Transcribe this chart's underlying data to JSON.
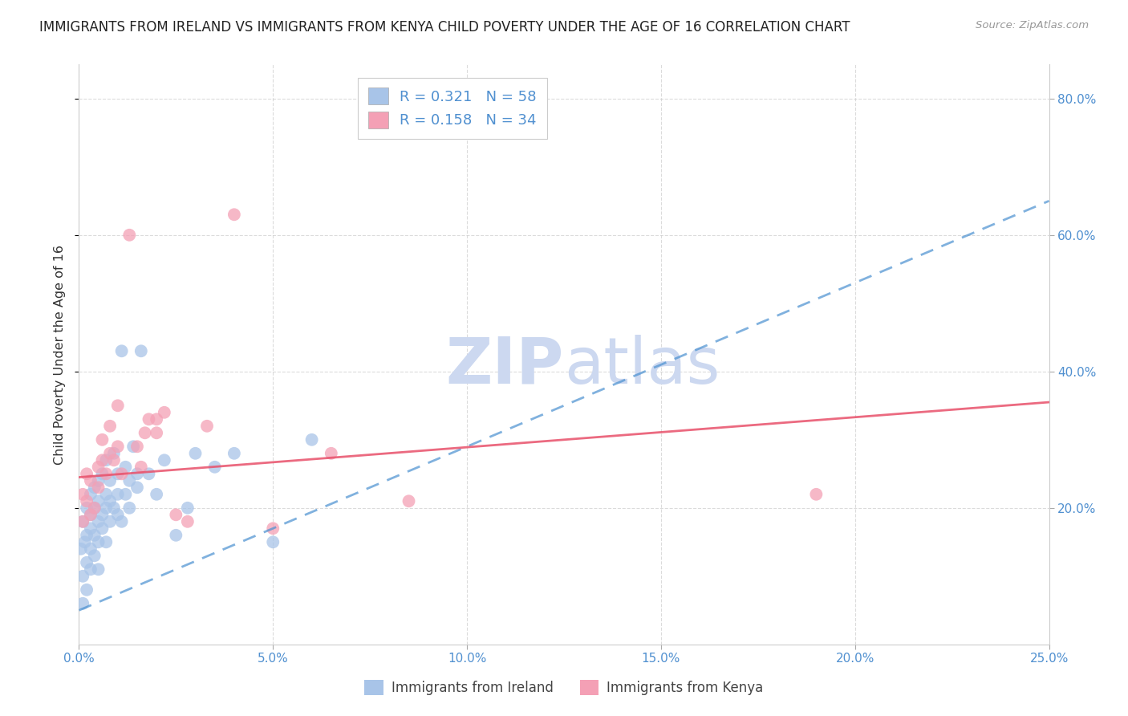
{
  "title": "IMMIGRANTS FROM IRELAND VS IMMIGRANTS FROM KENYA CHILD POVERTY UNDER THE AGE OF 16 CORRELATION CHART",
  "source": "Source: ZipAtlas.com",
  "ylabel": "Child Poverty Under the Age of 16",
  "legend_ireland": "Immigrants from Ireland",
  "legend_kenya": "Immigrants from Kenya",
  "ireland_R": "0.321",
  "ireland_N": "58",
  "kenya_R": "0.158",
  "kenya_N": "34",
  "xlim": [
    0.0,
    0.25
  ],
  "ylim": [
    0.0,
    0.85
  ],
  "xtick_labels": [
    "0.0%",
    "5.0%",
    "10.0%",
    "15.0%",
    "20.0%",
    "25.0%"
  ],
  "xtick_vals": [
    0.0,
    0.05,
    0.1,
    0.15,
    0.2,
    0.25
  ],
  "ytick_labels": [
    "20.0%",
    "40.0%",
    "60.0%",
    "80.0%"
  ],
  "ytick_vals": [
    0.2,
    0.4,
    0.6,
    0.8
  ],
  "ireland_color": "#a8c4e8",
  "kenya_color": "#f4a0b5",
  "ireland_line_color": "#4a90d0",
  "kenya_line_color": "#e8506a",
  "background_color": "#ffffff",
  "grid_color": "#cccccc",
  "watermark_color": "#ccd8f0",
  "ireland_line_x0": 0.0,
  "ireland_line_y0": 0.05,
  "ireland_line_x1": 0.25,
  "ireland_line_y1": 0.65,
  "kenya_line_x0": 0.0,
  "kenya_line_y0": 0.245,
  "kenya_line_x1": 0.25,
  "kenya_line_y1": 0.355,
  "ireland_x": [
    0.0005,
    0.001,
    0.001,
    0.001,
    0.0015,
    0.002,
    0.002,
    0.002,
    0.002,
    0.003,
    0.003,
    0.003,
    0.003,
    0.003,
    0.004,
    0.004,
    0.004,
    0.004,
    0.005,
    0.005,
    0.005,
    0.005,
    0.005,
    0.006,
    0.006,
    0.006,
    0.007,
    0.007,
    0.007,
    0.007,
    0.008,
    0.008,
    0.008,
    0.009,
    0.009,
    0.01,
    0.01,
    0.01,
    0.011,
    0.011,
    0.012,
    0.012,
    0.013,
    0.013,
    0.014,
    0.015,
    0.015,
    0.016,
    0.018,
    0.02,
    0.022,
    0.025,
    0.028,
    0.03,
    0.035,
    0.04,
    0.05,
    0.06
  ],
  "ireland_y": [
    0.14,
    0.1,
    0.06,
    0.18,
    0.15,
    0.12,
    0.2,
    0.16,
    0.08,
    0.17,
    0.22,
    0.14,
    0.19,
    0.11,
    0.2,
    0.16,
    0.13,
    0.23,
    0.15,
    0.21,
    0.18,
    0.24,
    0.11,
    0.19,
    0.25,
    0.17,
    0.22,
    0.2,
    0.27,
    0.15,
    0.18,
    0.24,
    0.21,
    0.2,
    0.28,
    0.25,
    0.22,
    0.19,
    0.43,
    0.18,
    0.26,
    0.22,
    0.24,
    0.2,
    0.29,
    0.25,
    0.23,
    0.43,
    0.25,
    0.22,
    0.27,
    0.16,
    0.2,
    0.28,
    0.26,
    0.28,
    0.15,
    0.3
  ],
  "kenya_x": [
    0.001,
    0.001,
    0.002,
    0.002,
    0.003,
    0.003,
    0.004,
    0.005,
    0.005,
    0.006,
    0.006,
    0.007,
    0.008,
    0.008,
    0.009,
    0.01,
    0.01,
    0.011,
    0.013,
    0.015,
    0.016,
    0.017,
    0.018,
    0.02,
    0.022,
    0.025,
    0.028,
    0.033,
    0.04,
    0.05,
    0.065,
    0.085,
    0.19,
    0.02
  ],
  "kenya_y": [
    0.22,
    0.18,
    0.25,
    0.21,
    0.19,
    0.24,
    0.2,
    0.26,
    0.23,
    0.27,
    0.3,
    0.25,
    0.32,
    0.28,
    0.27,
    0.29,
    0.35,
    0.25,
    0.6,
    0.29,
    0.26,
    0.31,
    0.33,
    0.31,
    0.34,
    0.19,
    0.18,
    0.32,
    0.63,
    0.17,
    0.28,
    0.21,
    0.22,
    0.33
  ]
}
